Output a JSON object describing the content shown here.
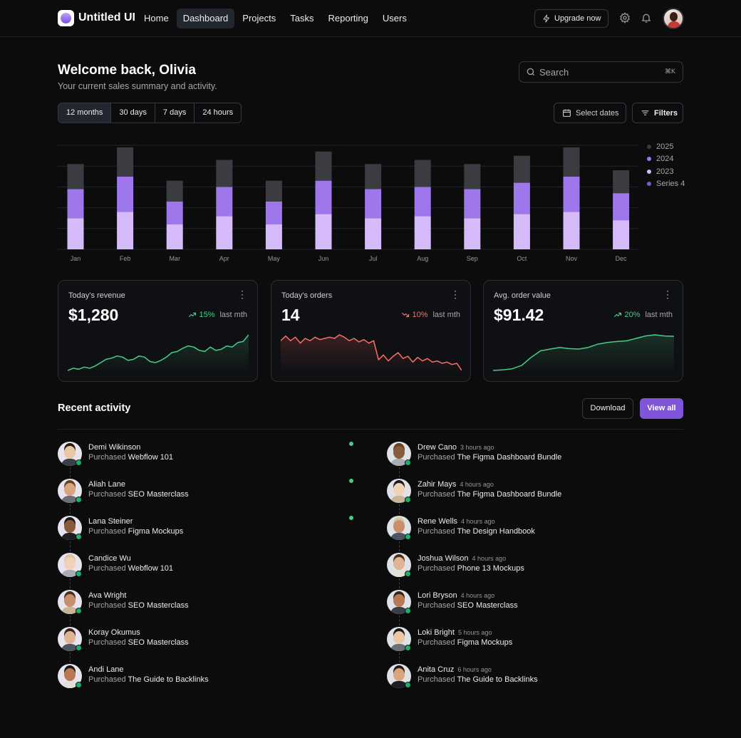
{
  "app": {
    "name": "Untitled UI",
    "nav": [
      {
        "label": "Home",
        "active": false
      },
      {
        "label": "Dashboard",
        "active": true
      },
      {
        "label": "Projects",
        "active": false
      },
      {
        "label": "Tasks",
        "active": false
      },
      {
        "label": "Reporting",
        "active": false
      },
      {
        "label": "Users",
        "active": false
      }
    ],
    "upgrade_label": "Upgrade now",
    "icons": {
      "upgrade": "lightning-icon",
      "settings": "gear-icon",
      "notifications": "bell-icon"
    }
  },
  "welcome": {
    "title": "Welcome back, Olivia",
    "subtitle": "Your current sales summary and activity."
  },
  "search": {
    "placeholder": "Search",
    "shortcut": "⌘K"
  },
  "time_ranges": [
    {
      "label": "12 months",
      "active": true
    },
    {
      "label": "30 days",
      "active": false
    },
    {
      "label": "7 days",
      "active": false
    },
    {
      "label": "24 hours",
      "active": false
    }
  ],
  "actions": {
    "select_dates": "Select dates",
    "filters": "Filters"
  },
  "colors": {
    "accent": "#7f56d9",
    "series_2025": "#3a3c42",
    "series_2024": "#9e77ed",
    "series_2023": "#d6bbfb",
    "series_4": "#7f56d9",
    "positive": "#47cd89",
    "negative": "#f97066"
  },
  "chart_data": {
    "type": "bar",
    "stacked": true,
    "categories": [
      "Jan",
      "Feb",
      "Mar",
      "Apr",
      "May",
      "Jun",
      "Jul",
      "Aug",
      "Sep",
      "Oct",
      "Nov",
      "Dec"
    ],
    "series": [
      {
        "name": "2023",
        "color": "#d6bbfb",
        "values": [
          15,
          18,
          12,
          16,
          12,
          17,
          15,
          16,
          15,
          17,
          18,
          14
        ]
      },
      {
        "name": "2024",
        "color": "#9e77ed",
        "values": [
          14,
          17,
          11,
          14,
          11,
          16,
          14,
          14,
          14,
          15,
          17,
          13
        ]
      },
      {
        "name": "2025",
        "color": "#3a3c42",
        "values": [
          12,
          14,
          10,
          13,
          10,
          14,
          12,
          13,
          12,
          13,
          14,
          11
        ]
      },
      {
        "name": "Series 4",
        "color": "#7f56d9",
        "values": [
          0,
          0,
          0,
          0,
          0,
          0,
          0,
          0,
          0,
          0,
          0,
          0
        ]
      }
    ],
    "ylim": [
      0,
      50
    ],
    "grid": true,
    "legend": "right",
    "legend_order": [
      "2025",
      "2024",
      "2023",
      "Series 4"
    ]
  },
  "metrics": [
    {
      "label": "Today's revenue",
      "value": "$1,280",
      "change": "15%",
      "direction": "up",
      "period": "last mth",
      "trend": [
        2,
        4,
        3,
        5,
        4,
        6,
        9,
        12,
        13,
        15,
        14,
        11,
        12,
        15,
        14,
        10,
        9,
        11,
        14,
        18,
        19,
        22,
        24,
        23,
        20,
        19,
        23,
        20,
        21,
        24,
        23,
        27,
        28,
        34
      ]
    },
    {
      "label": "Today's orders",
      "value": "14",
      "change": "10%",
      "direction": "down",
      "period": "last mth",
      "trend": [
        30,
        34,
        30,
        33,
        28,
        32,
        30,
        33,
        31,
        32,
        33,
        32,
        35,
        33,
        30,
        32,
        29,
        31,
        28,
        30,
        14,
        18,
        13,
        17,
        20,
        15,
        17,
        12,
        16,
        13,
        15,
        12,
        13,
        11,
        12,
        10,
        11,
        5
      ]
    },
    {
      "label": "Avg. order value",
      "value": "$91.42",
      "change": "20%",
      "direction": "up",
      "period": "last mth",
      "trend": [
        4,
        4.3,
        5,
        7,
        12,
        16,
        17,
        18,
        17.3,
        17,
        18,
        20,
        21,
        21.6,
        22,
        23.5,
        25,
        25.7,
        25,
        24.8
      ]
    }
  ],
  "activity": {
    "title": "Recent activity",
    "download_label": "Download",
    "view_all_label": "View all",
    "left": [
      {
        "name": "Demi Wikinson",
        "time": "",
        "verb": "Purchased",
        "item": "Webflow 101",
        "unread": true
      },
      {
        "name": "Aliah Lane",
        "time": "",
        "verb": "Purchased",
        "item": "SEO Masterclass",
        "unread": true
      },
      {
        "name": "Lana Steiner",
        "time": "",
        "verb": "Purchased",
        "item": "Figma Mockups",
        "unread": true
      },
      {
        "name": "Candice Wu",
        "time": "",
        "verb": "Purchased",
        "item": "Webflow 101",
        "unread": false
      },
      {
        "name": "Ava Wright",
        "time": "",
        "verb": "Purchased",
        "item": "SEO Masterclass",
        "unread": false
      },
      {
        "name": "Koray Okumus",
        "time": "",
        "verb": "Purchased",
        "item": "SEO Masterclass",
        "unread": false
      },
      {
        "name": "Andi Lane",
        "time": "",
        "verb": "Purchased",
        "item": "The Guide to Backlinks",
        "unread": false
      }
    ],
    "right": [
      {
        "name": "Drew Cano",
        "time": "3 hours ago",
        "verb": "Purchased",
        "item": "The Figma Dashboard Bundle"
      },
      {
        "name": "Zahir Mays",
        "time": "4 hours ago",
        "verb": "Purchased",
        "item": "The Figma Dashboard Bundle"
      },
      {
        "name": "Rene Wells",
        "time": "4 hours ago",
        "verb": "Purchased",
        "item": "The Design Handbook"
      },
      {
        "name": "Joshua Wilson",
        "time": "4 hours ago",
        "verb": "Purchased",
        "item": "Phone 13 Mockups"
      },
      {
        "name": "Lori Bryson",
        "time": "4 hours ago",
        "verb": "Purchased",
        "item": "SEO Masterclass"
      },
      {
        "name": "Loki Bright",
        "time": "5 hours ago",
        "verb": "Purchased",
        "item": "Figma Mockups"
      },
      {
        "name": "Anita Cruz",
        "time": "6 hours ago",
        "verb": "Purchased",
        "item": "The Guide to Backlinks"
      }
    ]
  }
}
